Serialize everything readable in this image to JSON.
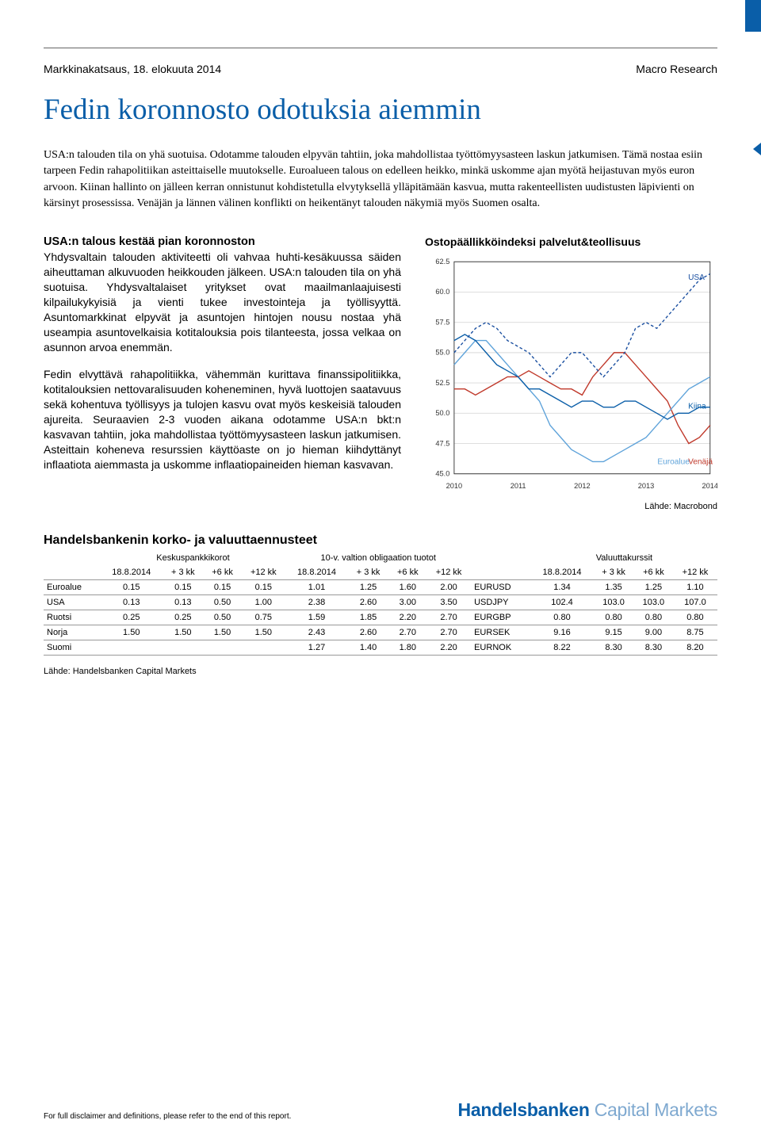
{
  "header": {
    "left": "Markkinakatsaus, 18. elokuuta 2014",
    "right": "Macro Research"
  },
  "title": "Fedin koronnosto odotuksia aiemmin",
  "lead": "USA:n talouden tila on yhä suotuisa. Odotamme talouden elpyvän tahtiin, joka mahdollistaa työttömyysasteen laskun jatkumisen. Tämä nostaa esiin tarpeen Fedin rahapolitiikan asteittaiselle muutokselle. Euroalueen talous on edelleen heikko, minkä uskomme ajan myötä heijastuvan myös euron arvoon. Kiinan hallinto on jälleen kerran onnistunut kohdistetulla elvytyksellä ylläpitämään kasvua, mutta rakenteellisten uudistusten läpivienti on kärsinyt prosessissa. Venäjän ja lännen välinen konflikti on heikentänyt talouden näkymiä myös Suomen osalta.",
  "section1": {
    "title": "USA:n talous kestää pian koronnoston",
    "p1": "Yhdysvaltain talouden aktiviteetti oli vahvaa huhti-kesäkuussa säiden aiheuttaman alkuvuoden heikkouden jälkeen. USA:n talouden tila on yhä suotuisa. Yhdysvaltalaiset yritykset ovat maailmanlaajuisesti kilpailukykyisiä ja vienti tukee investointeja ja työllisyyttä. Asuntomarkkinat elpyvät ja asuntojen hintojen nousu nostaa yhä useampia asuntovelkaisia kotitalouksia pois tilanteesta, jossa velkaa on asunnon arvoa enemmän.",
    "p2": "Fedin elvyttävä rahapolitiikka, vähemmän kurittava finanssipolitiikka, kotitalouksien nettovaralisuuden koheneminen, hyvä luottojen saatavuus sekä kohentuva työllisyys ja tulojen kasvu ovat myös keskeisiä talouden ajureita. Seuraavien 2-3 vuoden aikana odotamme USA:n bkt:n kasvavan tahtiin, joka mahdollistaa työttömyysasteen laskun jatkumisen. Asteittain koheneva resurssien käyttöaste on jo hieman kiihdyttänyt inflaatiota aiemmasta ja uskomme inflaatiopaineiden hieman kasvavan."
  },
  "chart": {
    "type": "line",
    "title": "Ostopäällikköindeksi palvelut&teollisuus",
    "x_years": [
      "2010",
      "2011",
      "2012",
      "2013",
      "2014"
    ],
    "ylim": [
      45.0,
      62.5
    ],
    "yticks": [
      45.0,
      47.5,
      50.0,
      52.5,
      55.0,
      57.5,
      60.0,
      62.5
    ],
    "grid_color": "#d9d9d9",
    "background_color": "#ffffff",
    "axis_color": "#333333",
    "label_fontsize": 11,
    "tick_fontsize": 10,
    "line_width": 1.5,
    "series": {
      "USA": {
        "label": "USA",
        "color": "#1a4fa0",
        "dash": "4 3",
        "y": [
          55,
          56,
          57,
          57.5,
          57,
          56,
          55.5,
          55,
          54,
          53,
          54,
          55,
          55,
          54,
          53,
          54,
          55,
          57,
          57.5,
          57,
          58,
          59,
          60,
          61,
          61.5
        ]
      },
      "Kiina": {
        "label": "Kiina",
        "color": "#0a5ea8",
        "dash": "none",
        "y": [
          56,
          56.5,
          56,
          55,
          54,
          53.5,
          53,
          52,
          52,
          51.5,
          51,
          50.5,
          51,
          51,
          50.5,
          50.5,
          51,
          51,
          50.5,
          50,
          49.5,
          50,
          50,
          50.5,
          50.5
        ]
      },
      "Euroalue": {
        "label": "Euroalue",
        "color": "#5fa3da",
        "dash": "none",
        "y": [
          54,
          55,
          56,
          56,
          55,
          54,
          53,
          52,
          51,
          49,
          48,
          47,
          46.5,
          46,
          46,
          46.5,
          47,
          47.5,
          48,
          49,
          50,
          51,
          52,
          52.5,
          53
        ]
      },
      "Venaja": {
        "label": "Venäjä",
        "color": "#c0392b",
        "dash": "none",
        "y": [
          52,
          52,
          51.5,
          52,
          52.5,
          53,
          53,
          53.5,
          53,
          52.5,
          52,
          52,
          51.5,
          53,
          54,
          55,
          55,
          54,
          53,
          52,
          51,
          49,
          47.5,
          48,
          49
        ]
      }
    },
    "source": "Lähde: Macrobond"
  },
  "forecast": {
    "title": "Handelsbankenin korko- ja valuuttaennusteet",
    "groups": [
      "Keskuspankkikorot",
      "10-v. valtion obligaation tuotot",
      "Valuuttakurssit"
    ],
    "col_headers": [
      "18.8.2014",
      "+ 3 kk",
      "+6 kk",
      "+12 kk"
    ],
    "rows": [
      {
        "label": "Euroalue",
        "a": [
          "0.15",
          "0.15",
          "0.15",
          "0.15"
        ],
        "b": [
          "1.01",
          "1.25",
          "1.60",
          "2.00"
        ],
        "pair": "EURUSD",
        "c": [
          "1.34",
          "1.35",
          "1.25",
          "1.10"
        ]
      },
      {
        "label": "USA",
        "a": [
          "0.13",
          "0.13",
          "0.50",
          "1.00"
        ],
        "b": [
          "2.38",
          "2.60",
          "3.00",
          "3.50"
        ],
        "pair": "USDJPY",
        "c": [
          "102.4",
          "103.0",
          "103.0",
          "107.0"
        ]
      },
      {
        "label": "Ruotsi",
        "a": [
          "0.25",
          "0.25",
          "0.50",
          "0.75"
        ],
        "b": [
          "1.59",
          "1.85",
          "2.20",
          "2.70"
        ],
        "pair": "EURGBP",
        "c": [
          "0.80",
          "0.80",
          "0.80",
          "0.80"
        ]
      },
      {
        "label": "Norja",
        "a": [
          "1.50",
          "1.50",
          "1.50",
          "1.50"
        ],
        "b": [
          "2.43",
          "2.60",
          "2.70",
          "2.70"
        ],
        "pair": "EURSEK",
        "c": [
          "9.16",
          "9.15",
          "9.00",
          "8.75"
        ]
      },
      {
        "label": "Suomi",
        "a": [
          "",
          "",
          "",
          ""
        ],
        "b": [
          "1.27",
          "1.40",
          "1.80",
          "2.20"
        ],
        "pair": "EURNOK",
        "c": [
          "8.22",
          "8.30",
          "8.30",
          "8.20"
        ]
      }
    ],
    "source": "Lähde: Handelsbanken Capital Markets"
  },
  "footer": {
    "disclaimer": "For full disclaimer and definitions, please refer to the end of this report.",
    "brand_main": "Handelsbanken",
    "brand_sub": "Capital Markets"
  }
}
